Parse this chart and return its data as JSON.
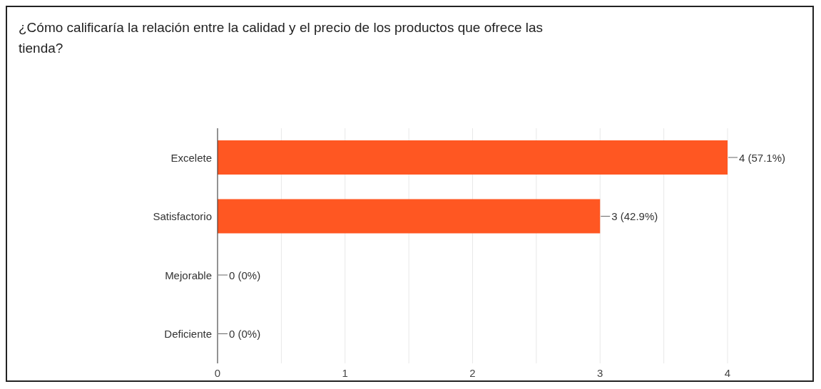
{
  "chart_data": {
    "type": "bar",
    "orientation": "horizontal",
    "title": "¿Cómo calificaría la relación entre la calidad y el precio de los productos que ofrece las tienda?",
    "categories": [
      "Excelete",
      "Satisfactorio",
      "Mejorable",
      "Deficiente"
    ],
    "values": [
      4,
      3,
      0,
      0
    ],
    "color": "#ff5722",
    "value_labels": [
      "4 (57.1%)",
      "3 (42.9%)",
      "0 (0%)",
      "0 (0%)"
    ],
    "xlim": [
      0,
      4
    ],
    "xticks": [
      0,
      {
        "value": 0.5,
        "label": null
      },
      1,
      {
        "value": 1.5,
        "label": null
      },
      2,
      {
        "value": 2.5,
        "label": null
      },
      3,
      {
        "value": 3.5,
        "label": null
      },
      4
    ],
    "grid": "x"
  }
}
